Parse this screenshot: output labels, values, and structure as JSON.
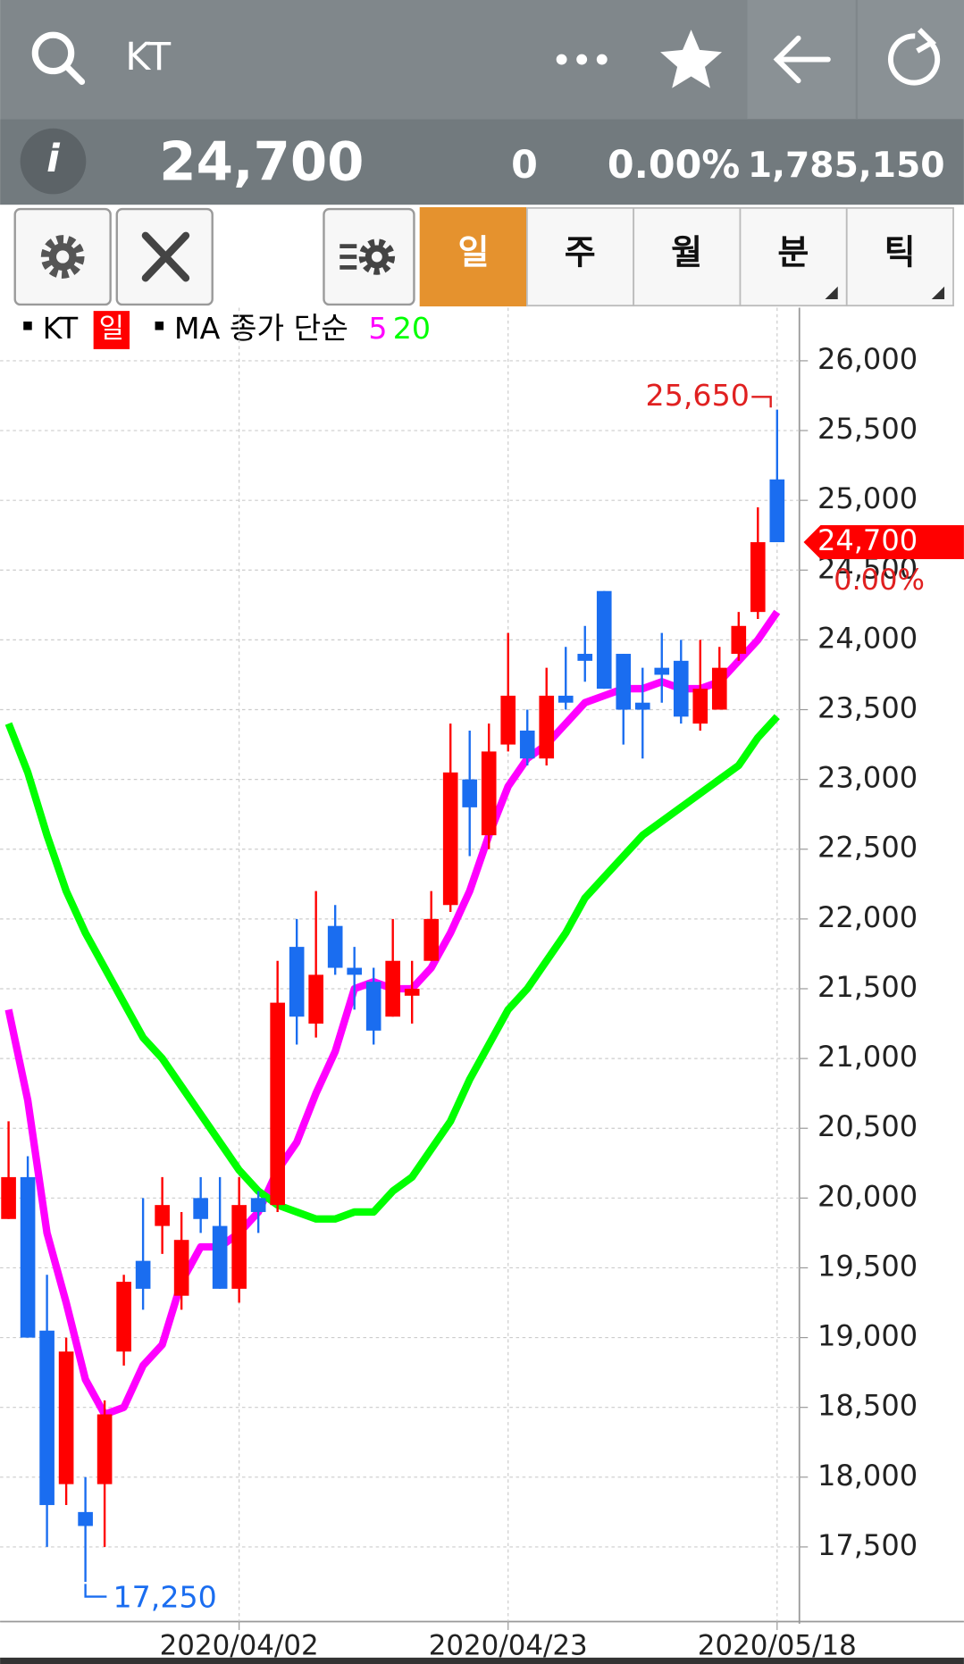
{
  "header": {
    "search_text": "KT",
    "price": "24,700",
    "change": "0",
    "change_pct": "0.00%",
    "volume": "1,785,150"
  },
  "tabs": [
    "일",
    "주",
    "월",
    "분",
    "틱"
  ],
  "legend": {
    "symbol": "KT",
    "period": "일",
    "ma_label": "MA 종가 단순"
  },
  "chart_data": {
    "type": "candlestick",
    "categories": [
      null,
      null,
      null,
      null,
      null,
      null,
      null,
      null,
      null,
      null,
      null,
      null,
      "2020/04/02",
      null,
      null,
      null,
      null,
      null,
      null,
      null,
      null,
      null,
      null,
      null,
      null,
      null,
      "2020/04/23",
      null,
      null,
      null,
      null,
      null,
      null,
      null,
      null,
      null,
      null,
      null,
      null,
      null,
      "2020/05/18"
    ],
    "series": [
      {
        "name": "KT",
        "up_color": "#ff0000",
        "down_color": "#1a6df0",
        "open": [
          19850,
          20150,
          19050,
          17950,
          17750,
          17950,
          18900,
          19550,
          19800,
          19300,
          20000,
          19800,
          19350,
          20000,
          19950,
          21800,
          21250,
          21950,
          21650,
          21550,
          21300,
          21450,
          21700,
          22100,
          23000,
          22600,
          23250,
          23350,
          23150,
          23600,
          23900,
          24350,
          23900,
          23550,
          23800,
          23850,
          23400,
          23500,
          23900,
          24200,
          25150
        ],
        "high": [
          20550,
          20300,
          19450,
          19000,
          18000,
          18550,
          19450,
          20000,
          20150,
          19900,
          20150,
          20150,
          20150,
          20050,
          21700,
          22000,
          22200,
          22100,
          21800,
          21650,
          22000,
          21700,
          22200,
          23400,
          23350,
          23400,
          24050,
          23500,
          23800,
          23950,
          24100,
          24350,
          23900,
          23800,
          24050,
          24000,
          24000,
          23950,
          24200,
          24950,
          25650
        ],
        "low": [
          19850,
          19000,
          17500,
          17800,
          17250,
          17500,
          18800,
          19200,
          19600,
          19200,
          19750,
          19350,
          19250,
          19750,
          19900,
          21100,
          21150,
          21600,
          21350,
          21100,
          21300,
          21250,
          21700,
          22050,
          22450,
          22500,
          23200,
          23100,
          23100,
          23500,
          23700,
          23650,
          23250,
          23150,
          23550,
          23400,
          23350,
          23500,
          23850,
          24150,
          24700
        ],
        "close": [
          20150,
          19000,
          17800,
          18900,
          17650,
          18450,
          19400,
          19350,
          19950,
          19700,
          19850,
          19350,
          19950,
          19900,
          21400,
          21300,
          21600,
          21650,
          21600,
          21200,
          21700,
          21500,
          22000,
          23050,
          22800,
          23200,
          23600,
          23150,
          23600,
          23550,
          23850,
          23650,
          23500,
          23500,
          23750,
          23450,
          23650,
          23800,
          24100,
          24700,
          24700
        ]
      }
    ],
    "lines": [
      {
        "type": "line",
        "name": "5",
        "color": "#ff00ff",
        "values": [
          21350,
          20700,
          19750,
          19250,
          18700,
          18450,
          18500,
          18800,
          18950,
          19400,
          19650,
          19650,
          19750,
          19900,
          20200,
          20400,
          20750,
          21050,
          21500,
          21550,
          21500,
          21500,
          21650,
          21900,
          22200,
          22600,
          22950,
          23150,
          23250,
          23400,
          23550,
          23600,
          23650,
          23650,
          23700,
          23650,
          23650,
          23700,
          23850,
          24000,
          24200
        ]
      },
      {
        "type": "line",
        "name": "20",
        "color": "#00ff00",
        "values": [
          23400,
          23050,
          22600,
          22200,
          21900,
          21650,
          21400,
          21150,
          21000,
          20800,
          20600,
          20400,
          20200,
          20050,
          19950,
          19900,
          19850,
          19850,
          19900,
          19900,
          20050,
          20150,
          20350,
          20550,
          20850,
          21100,
          21350,
          21500,
          21700,
          21900,
          22150,
          22300,
          22450,
          22600,
          22700,
          22800,
          22900,
          23000,
          23100,
          23300,
          23450
        ]
      }
    ],
    "max_label": "25,650",
    "min_label": "17,250",
    "last_label": "24,700",
    "last_change": "0.00%",
    "ylim": [
      16950,
      26380
    ],
    "yticks": [
      {
        "value": 17500,
        "label": "17,500"
      },
      {
        "value": 18000,
        "label": "18,000"
      },
      {
        "value": 18500,
        "label": "18,500"
      },
      {
        "value": 19000,
        "label": "19,000"
      },
      {
        "value": 19500,
        "label": "19,500"
      },
      {
        "value": 20000,
        "label": "20,000"
      },
      {
        "value": 20500,
        "label": "20,500"
      },
      {
        "value": 21000,
        "label": "21,000"
      },
      {
        "value": 21500,
        "label": "21,500"
      },
      {
        "value": 22000,
        "label": "22,000"
      },
      {
        "value": 22500,
        "label": "22,500"
      },
      {
        "value": 23000,
        "label": "23,000"
      },
      {
        "value": 23500,
        "label": "23,500"
      },
      {
        "value": 24000,
        "label": "24,000"
      },
      {
        "value": 24500,
        "label": "24,500"
      },
      {
        "value": 25000,
        "label": "25,000"
      },
      {
        "value": 25500,
        "label": "25,500"
      },
      {
        "value": 26000,
        "label": "26,000"
      }
    ],
    "grid": true
  }
}
